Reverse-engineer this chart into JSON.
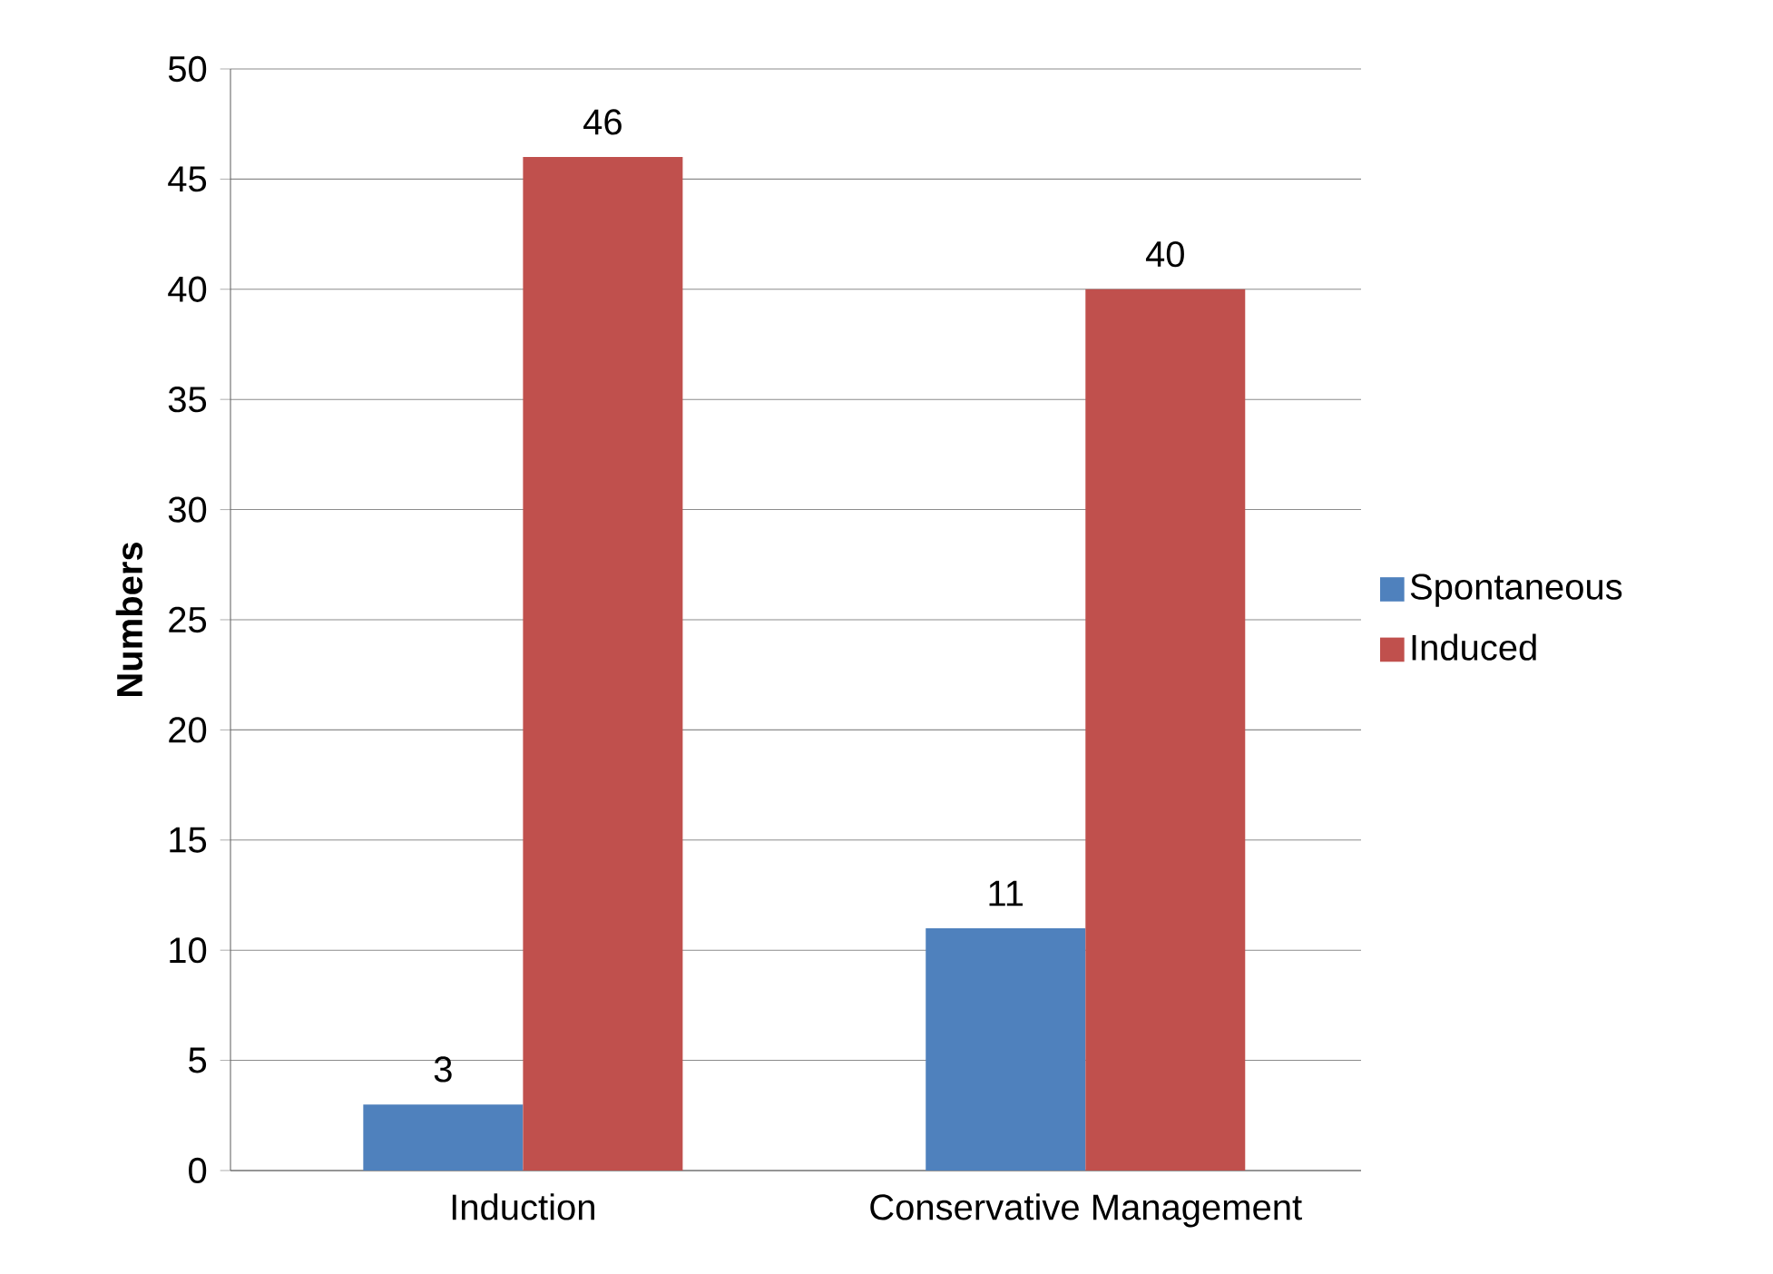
{
  "chart_data": {
    "type": "bar",
    "ylabel": "Numbers",
    "categories": [
      "Induction",
      "Conservative  Management"
    ],
    "series": [
      {
        "name": "Spontaneous",
        "color": "#4f81bd",
        "values": [
          3,
          11
        ]
      },
      {
        "name": "Induced",
        "color": "#c0504d",
        "values": [
          46,
          40
        ]
      }
    ],
    "ylim": [
      0,
      50
    ],
    "yticks": [
      0,
      5,
      10,
      15,
      20,
      25,
      30,
      35,
      40,
      45,
      50
    ],
    "grid": "y",
    "legend": "right",
    "data_labels": true
  }
}
